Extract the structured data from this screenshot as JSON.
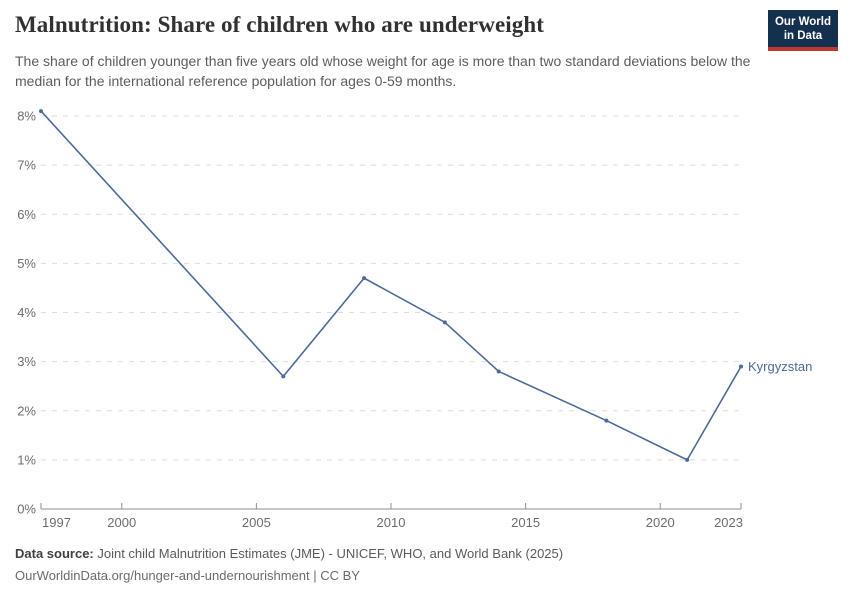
{
  "header": {
    "title": "Malnutrition: Share of children who are underweight",
    "subtitle": "The share of children younger than five years old whose weight for age is more than two standard deviations below the median for the international reference population for ages 0-59 months.",
    "logo": {
      "line1": "Our World",
      "line2": "in Data",
      "bg_color": "#14304f",
      "accent_color": "#bc3a32"
    }
  },
  "chart_data": {
    "type": "line",
    "title": "Malnutrition: Share of children who are underweight",
    "xlabel": "",
    "ylabel": "",
    "xlim": [
      1997,
      2023
    ],
    "ylim": [
      0,
      8
    ],
    "x_ticks": [
      1997,
      2000,
      2005,
      2010,
      2015,
      2020,
      2023
    ],
    "y_ticks": [
      0,
      1,
      2,
      3,
      4,
      5,
      6,
      7,
      8
    ],
    "y_tick_suffix": "%",
    "grid": "horizontal-dashed",
    "legend_position": "end-of-line-label",
    "series": [
      {
        "name": "Kyrgyzstan",
        "color": "#4c6a9c",
        "x": [
          1997,
          2006,
          2009,
          2012,
          2014,
          2018,
          2021,
          2023
        ],
        "values": [
          8.1,
          2.7,
          4.7,
          3.8,
          2.8,
          1.8,
          1.0,
          2.9
        ]
      }
    ],
    "colors": {
      "grid": "#dedede",
      "axis": "#8f8f8f",
      "tick_text": "#6d6d6d"
    }
  },
  "footer": {
    "source_label": "Data source:",
    "source_text": " Joint child Malnutrition Estimates (JME) - UNICEF, WHO, and World Bank (2025)",
    "attribution": "OurWorldinData.org/hunger-and-undernourishment | CC BY"
  }
}
